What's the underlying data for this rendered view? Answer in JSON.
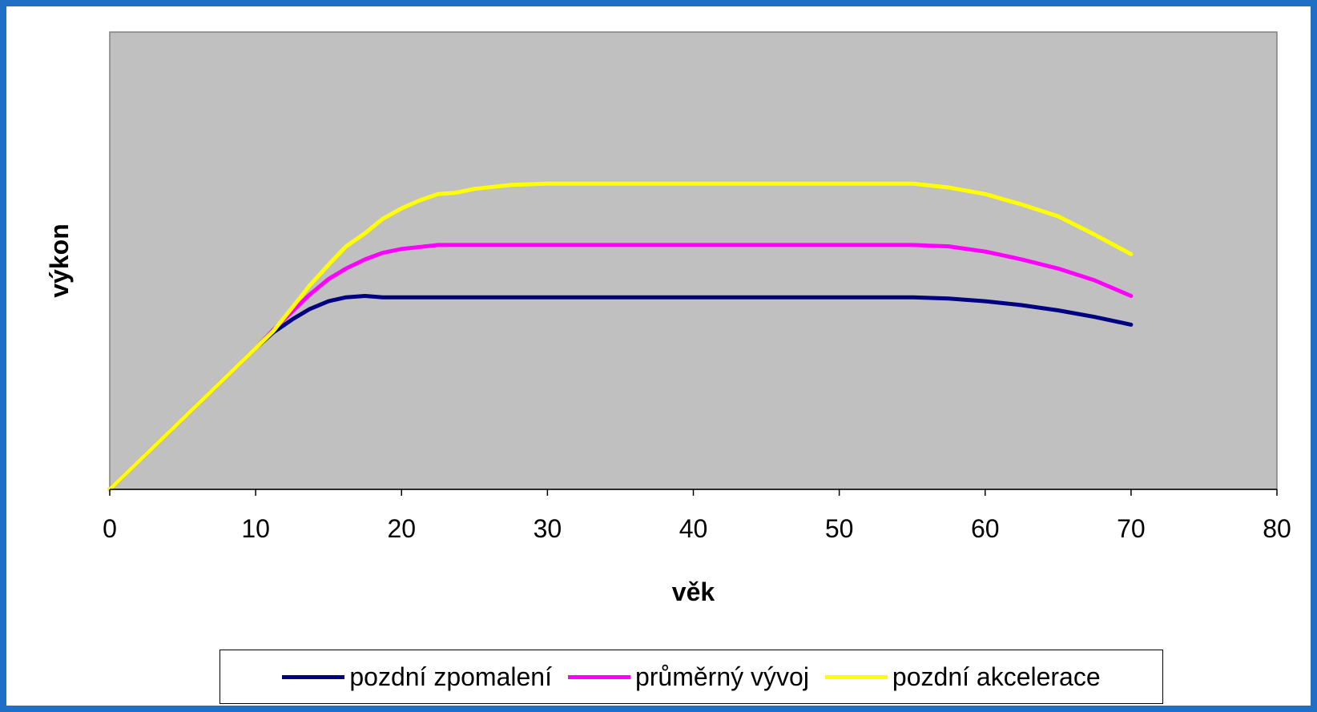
{
  "chart_data": {
    "type": "line",
    "xlabel": "věk",
    "ylabel": "výkon",
    "xlim": [
      0,
      80
    ],
    "ylim": [
      0,
      35
    ],
    "xticks": [
      0,
      10,
      20,
      30,
      40,
      50,
      60,
      70,
      80
    ],
    "yticks_visible": false,
    "grid": false,
    "plot_background": "#c0c0c0",
    "legend_position": "bottom",
    "series": [
      {
        "name": "pozdní zpomalení",
        "color": "#000080",
        "x": [
          0,
          2.5,
          5,
          7.5,
          10,
          11.2,
          12.5,
          13.7,
          15,
          16.2,
          17.5,
          18.7,
          20,
          22.5,
          25,
          30,
          40,
          50,
          55,
          57.5,
          60,
          62.5,
          65,
          67.5,
          70
        ],
        "y": [
          0,
          2.7,
          5.4,
          8.1,
          10.8,
          12.0,
          13.0,
          13.8,
          14.4,
          14.7,
          14.8,
          14.7,
          14.7,
          14.7,
          14.7,
          14.7,
          14.7,
          14.7,
          14.7,
          14.6,
          14.4,
          14.1,
          13.7,
          13.2,
          12.6
        ]
      },
      {
        "name": "průměrný vývoj",
        "color": "#ff00ff",
        "x": [
          0,
          2.5,
          5,
          7.5,
          10,
          11.2,
          12.5,
          13.7,
          15,
          16.2,
          17.5,
          18.7,
          20,
          22.5,
          25,
          30,
          40,
          50,
          55,
          57.5,
          60,
          62.5,
          65,
          67.5,
          70
        ],
        "y": [
          0,
          2.7,
          5.4,
          8.1,
          10.8,
          12.2,
          13.6,
          14.9,
          16.1,
          16.9,
          17.6,
          18.1,
          18.4,
          18.7,
          18.7,
          18.7,
          18.7,
          18.7,
          18.7,
          18.6,
          18.2,
          17.6,
          16.9,
          16.0,
          14.8
        ]
      },
      {
        "name": "pozdní akcelerace",
        "color": "#ffff00",
        "x": [
          0,
          2.5,
          5,
          7.5,
          10,
          11.2,
          12.5,
          13.7,
          15,
          16.2,
          17.5,
          18.7,
          20,
          21.2,
          22.5,
          23.7,
          25,
          27.5,
          30,
          40,
          50,
          55,
          57.5,
          60,
          62.5,
          65,
          67.5,
          70
        ],
        "y": [
          0,
          2.7,
          5.4,
          8.1,
          10.8,
          12.1,
          13.9,
          15.6,
          17.2,
          18.6,
          19.6,
          20.7,
          21.5,
          22.1,
          22.6,
          22.7,
          23.0,
          23.3,
          23.4,
          23.4,
          23.4,
          23.4,
          23.1,
          22.6,
          21.8,
          20.9,
          19.5,
          18.0
        ]
      }
    ]
  }
}
